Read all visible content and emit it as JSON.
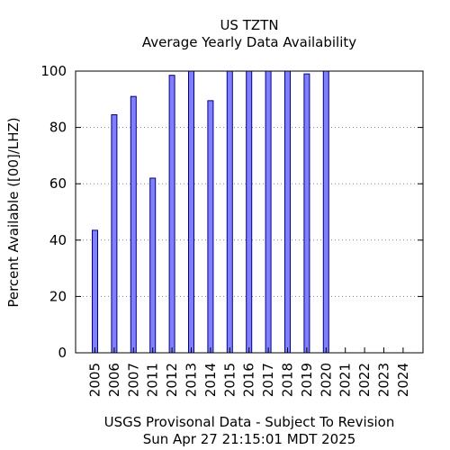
{
  "chart_data": {
    "type": "bar",
    "title": "US TZTN",
    "subtitle": "Average Yearly Data Availability",
    "ylabel": "Percent Available ([00]/LHZ)",
    "xlabel": "",
    "footer_lines": [
      "USGS Provisonal Data - Subject To Revision",
      "Sun Apr 27 21:15:01 MDT 2025"
    ],
    "categories": [
      "2005",
      "2006",
      "2007",
      "2011",
      "2012",
      "2013",
      "2014",
      "2015",
      "2016",
      "2017",
      "2018",
      "2019",
      "2020",
      "2021",
      "2022",
      "2023",
      "2024"
    ],
    "values": [
      43.5,
      84.5,
      91,
      62,
      98.5,
      100,
      89.5,
      100,
      100,
      100,
      100,
      99,
      100,
      0,
      0,
      0,
      0
    ],
    "ylim": [
      0,
      100
    ],
    "yticks": [
      0,
      20,
      40,
      60,
      80,
      100
    ],
    "grid": true,
    "bar_color": "#8080ff",
    "bar_edge_color": "#000080"
  }
}
